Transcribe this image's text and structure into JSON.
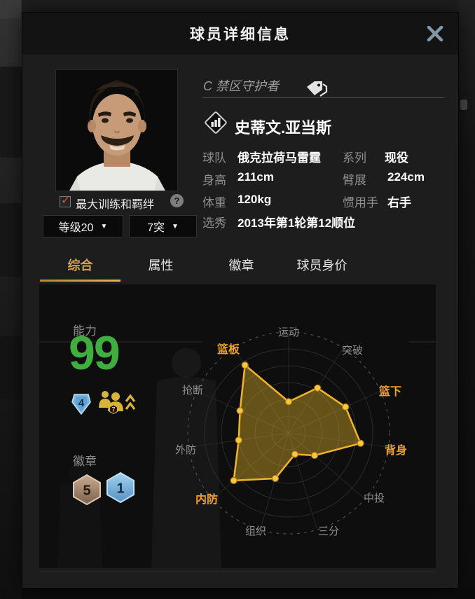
{
  "dialog": {
    "title": "球员详细信息"
  },
  "player": {
    "position_title": "C 禁区守护者",
    "name": "史蒂文.亚当斯",
    "info_rows": [
      {
        "label": "球队",
        "value": "俄克拉荷马雷霆"
      },
      {
        "label": "系列",
        "value": "现役"
      },
      {
        "label": "身高",
        "value": "211cm"
      },
      {
        "label": "臂展",
        "value": "224cm"
      },
      {
        "label": "体重",
        "value": "120kg"
      },
      {
        "label": "惯用手",
        "value": "右手"
      },
      {
        "label": "选秀",
        "value": "2013年第1轮第12顺位"
      }
    ]
  },
  "controls": {
    "training_checkbox_label": "最大训练和羁绊",
    "training_checkbox_checked": true,
    "level_select_value": "等级20",
    "breakthrough_select_value": "7突"
  },
  "tabs": [
    {
      "label": "综合",
      "active": true
    },
    {
      "label": "属性",
      "active": false
    },
    {
      "label": "徽章",
      "active": false
    },
    {
      "label": "球员身价",
      "active": false
    }
  ],
  "overview_panel": {
    "ability_label": "能力",
    "ability_value": "99",
    "gem_level": "4",
    "bond_level": "7",
    "badges_label": "徽章",
    "badges": [
      {
        "tier": "bronze",
        "count": "5"
      },
      {
        "tier": "blue",
        "count": "1"
      }
    ]
  },
  "icons": {
    "help_glyph": "?",
    "caret_glyph": "▼",
    "check_glyph": "✓"
  },
  "chart_data": {
    "type": "radar",
    "title": "",
    "categories": [
      "运动",
      "突破",
      "篮下",
      "背身",
      "中投",
      "三分",
      "组织",
      "内防",
      "外防",
      "抢断",
      "篮板"
    ],
    "values": [
      31,
      53,
      62,
      72,
      34,
      22,
      47,
      72,
      50,
      53,
      80
    ],
    "max": 100,
    "highlighted": [
      "篮板",
      "篮下",
      "背身",
      "内防"
    ],
    "grid": true,
    "ring_count": 5,
    "colors": {
      "line": "#f3b42c",
      "dot": "#f9c640",
      "dot_stroke": "#a87b14",
      "fill": "rgba(209,166,38,0.45)",
      "grid": "#2b2b2b",
      "spoke": "#262626",
      "outer_dash": "#5a5a5a",
      "label": "#8f8f8f",
      "label_highlight": "#efa22d"
    }
  },
  "colors": {
    "accent_gold": "#d3a24a",
    "ability_green": "#3fae3f",
    "close_x": "#8296a6",
    "check_orange": "#e0521d"
  }
}
